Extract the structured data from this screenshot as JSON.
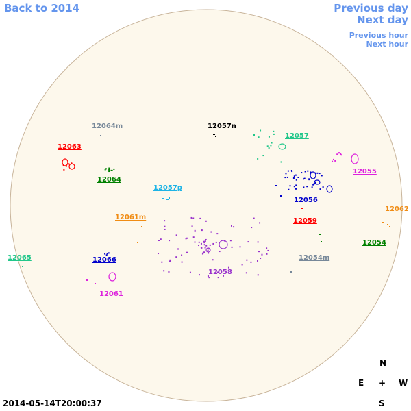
{
  "nav": {
    "back": "Back to 2014",
    "previous_day": "Previous day",
    "next_day": "Next day",
    "previous_hour": "Previous hour",
    "next_hour": "Next hour",
    "link_color": "#6495ed"
  },
  "timestamp": "2014-05-14T20:00:37",
  "compass": {
    "north": "N",
    "south": "S",
    "east": "E",
    "west": "W",
    "center": "+"
  },
  "disk": {
    "fill": "#fdf8ec",
    "stroke": "#c8b49a"
  },
  "regions": [
    {
      "id": "12064m",
      "label": "12064m",
      "color": "#778899"
    },
    {
      "id": "12057n",
      "label": "12057n",
      "color": "#000000"
    },
    {
      "id": "12057",
      "label": "12057",
      "color": "#22c78a"
    },
    {
      "id": "12063",
      "label": "12063",
      "color": "#ff0000"
    },
    {
      "id": "12055",
      "label": "12055",
      "color": "#dd22dd"
    },
    {
      "id": "12064",
      "label": "12064",
      "color": "#008000"
    },
    {
      "id": "12057p",
      "label": "12057p",
      "color": "#1eb4e6"
    },
    {
      "id": "12056",
      "label": "12056",
      "color": "#0000cc"
    },
    {
      "id": "12062",
      "label": "12062",
      "color": "#f08c14"
    },
    {
      "id": "12061m",
      "label": "12061m",
      "color": "#f08c14"
    },
    {
      "id": "12059",
      "label": "12059",
      "color": "#ff0000"
    },
    {
      "id": "12054",
      "label": "12054",
      "color": "#008000"
    },
    {
      "id": "12065",
      "label": "12065",
      "color": "#22c78a"
    },
    {
      "id": "12066",
      "label": "12066",
      "color": "#0000cc"
    },
    {
      "id": "12054m",
      "label": "12054m",
      "color": "#778899"
    },
    {
      "id": "12058",
      "label": "12058",
      "color": "#9932cc"
    },
    {
      "id": "12061",
      "label": "12061",
      "color": "#dd22dd"
    }
  ]
}
